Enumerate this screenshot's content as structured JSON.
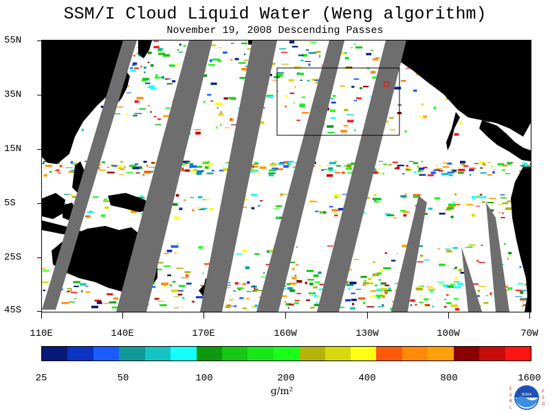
{
  "title": "SSM/I Cloud Liquid Water (Weng algorithm)",
  "subtitle": "November 19, 2008  Descending Passes",
  "map": {
    "lat_labels": [
      "55N",
      "35N",
      "15N",
      "5S",
      "25S",
      "45S"
    ],
    "lon_labels": [
      "110E",
      "140E",
      "170E",
      "160W",
      "130W",
      "100W",
      "70W"
    ],
    "colors": {
      "land": "#000000",
      "no_data_swath": "#6e6e6e",
      "ocean_clear": "#ffffff",
      "box_outline": "#000000",
      "marker": "#ff0000"
    }
  },
  "colorbar": {
    "colors": [
      "#061a7a",
      "#0b33c4",
      "#1a5cff",
      "#0f9a9a",
      "#12c4c4",
      "#15ffff",
      "#0c9a0c",
      "#14c814",
      "#18e818",
      "#1aff1a",
      "#b4b40a",
      "#d8d80c",
      "#ffff14",
      "#ff5a0a",
      "#ff8a0a",
      "#ffa00a",
      "#8c0000",
      "#c80a0a",
      "#ff1414"
    ],
    "tick_labels": [
      "25",
      "50",
      "100",
      "200",
      "400",
      "800",
      "1600"
    ],
    "units": "g/m²"
  },
  "logo": {
    "letters_left": "ESRL",
    "letters_right": "PSD"
  }
}
